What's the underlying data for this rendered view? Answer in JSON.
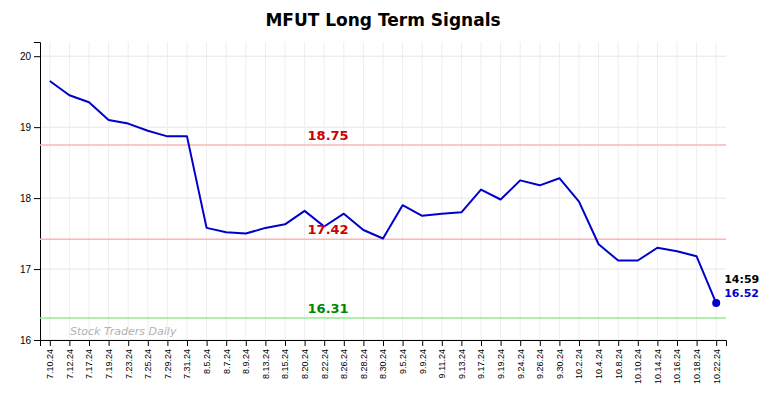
{
  "chart_data": {
    "type": "line",
    "title": "MFUT Long Term Signals",
    "categories": [
      "7.10.24",
      "7.12.24",
      "7.17.24",
      "7.19.24",
      "7.23.24",
      "7.25.24",
      "7.29.24",
      "7.31.24",
      "8.5.24",
      "8.7.24",
      "8.9.24",
      "8.13.24",
      "8.15.24",
      "8.20.24",
      "8.22.24",
      "8.26.24",
      "8.28.24",
      "8.30.24",
      "9.5.24",
      "9.9.24",
      "9.11.24",
      "9.13.24",
      "9.17.24",
      "9.19.24",
      "9.24.24",
      "9.26.24",
      "9.30.24",
      "10.2.24",
      "10.4.24",
      "10.8.24",
      "10.10.24",
      "10.14.24",
      "10.16.24",
      "10.18.24",
      "10.22.24"
    ],
    "values": [
      19.65,
      19.45,
      19.35,
      19.1,
      19.05,
      18.95,
      18.87,
      18.87,
      17.58,
      17.52,
      17.5,
      17.58,
      17.63,
      17.82,
      17.6,
      17.78,
      17.55,
      17.43,
      17.9,
      17.75,
      17.78,
      17.8,
      18.12,
      17.98,
      18.25,
      18.18,
      18.28,
      17.95,
      17.35,
      17.12,
      17.12,
      17.3,
      17.25,
      17.18,
      16.52
    ],
    "color": "#0000cc",
    "ylim": [
      16.0,
      20.2
    ],
    "yticks": [
      16,
      17,
      18,
      19,
      20
    ],
    "grid": true,
    "reference_lines": [
      {
        "value": 18.75,
        "color": "#ffb3b3",
        "label": "18.75",
        "label_color": "#cc0000"
      },
      {
        "value": 17.42,
        "color": "#ffb3b3",
        "label": "17.42",
        "label_color": "#cc0000"
      },
      {
        "value": 16.31,
        "color": "#90ee90",
        "label": "16.31",
        "label_color": "#008800"
      }
    ],
    "last_label": {
      "time": "14:59",
      "price": "16.52",
      "color": "#0000cc"
    },
    "watermark": {
      "text": "Stock Traders Daily",
      "color": "#aaaaaa"
    }
  }
}
